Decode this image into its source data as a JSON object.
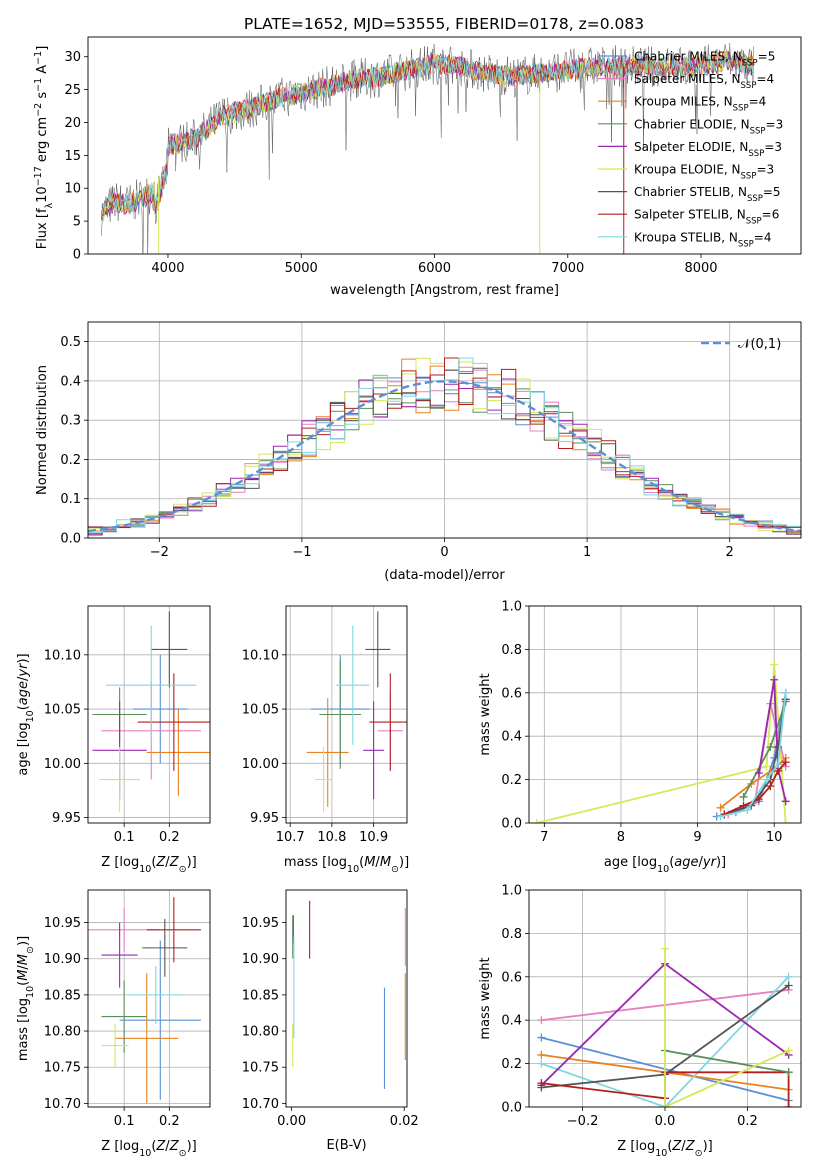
{
  "figure_title": "PLATE=1652, MJD=53555, FIBERID=0178, z=0.083",
  "colors": {
    "chabrier_miles": "#5b8fd6",
    "salpeter_miles": "#e87fc0",
    "kroupa_miles": "#e8821e",
    "chabrier_elodie": "#5a8f5a",
    "salpeter_elodie": "#9b27b0",
    "kroupa_elodie": "#d4e85a",
    "chabrier_stelib": "#555555",
    "salpeter_stelib": "#b41e1e",
    "kroupa_stelib": "#7fd8e0"
  },
  "chart_data": [
    {
      "id": "spectrum",
      "type": "line",
      "xlabel": "wavelength [Angstrom, rest frame]",
      "ylabel": "Flux [f_λ 10^-17 erg cm^-2 s^-1 A^-1]",
      "xlim": [
        3400,
        8750
      ],
      "ylim": [
        0,
        33
      ],
      "xticks": [
        4000,
        5000,
        6000,
        7000,
        8000
      ],
      "yticks": [
        0,
        5,
        10,
        15,
        20,
        25,
        30
      ],
      "grid": false,
      "legend_position": "right",
      "legend": [
        {
          "label": "Chabrier MILES, N",
          "sub": "SSP",
          "eq": "=5",
          "color": "#5b8fd6"
        },
        {
          "label": "Salpeter MILES, N",
          "sub": "SSP",
          "eq": "=4",
          "color": "#e87fc0"
        },
        {
          "label": "Kroupa MILES, N",
          "sub": "SSP",
          "eq": "=4",
          "color": "#e8821e"
        },
        {
          "label": "Chabrier ELODIE, N",
          "sub": "SSP",
          "eq": "=3",
          "color": "#5a8f5a"
        },
        {
          "label": "Salpeter ELODIE, N",
          "sub": "SSP",
          "eq": "=3",
          "color": "#9b27b0"
        },
        {
          "label": "Kroupa ELODIE, N",
          "sub": "SSP",
          "eq": "=3",
          "color": "#d4e85a"
        },
        {
          "label": "Chabrier STELIB, N",
          "sub": "SSP",
          "eq": "=5",
          "color": "#555555"
        },
        {
          "label": "Salpeter STELIB, N",
          "sub": "SSP",
          "eq": "=6",
          "color": "#b41e1e"
        },
        {
          "label": "Kroupa STELIB, N",
          "sub": "SSP",
          "eq": "=4",
          "color": "#7fd8e0"
        }
      ],
      "envelope": {
        "x": [
          3500,
          3600,
          3700,
          3800,
          3900,
          4000,
          4100,
          4200,
          4300,
          4400,
          4500,
          4600,
          4800,
          5000,
          5200,
          5400,
          5600,
          5800,
          5900,
          6000,
          6200,
          6400,
          6600,
          6800,
          7000,
          7200,
          7400,
          7600,
          7800,
          8000,
          8200,
          8400
        ],
        "y": [
          6,
          8,
          7.5,
          8.5,
          9.5,
          16.5,
          17,
          17.5,
          19,
          21,
          21.5,
          22,
          23.5,
          24.5,
          25.5,
          26.5,
          27,
          28,
          28.5,
          29,
          28.5,
          27.5,
          27,
          27.5,
          28,
          28.5,
          28.5,
          28.5,
          28.5,
          28.5,
          29.5,
          28.5
        ]
      },
      "spikes": [
        {
          "x": 6790,
          "color": "#d4e85a"
        },
        {
          "x": 7420,
          "color": "#b41e1e"
        },
        {
          "x": 3930,
          "color": "#d4e85a"
        }
      ]
    },
    {
      "id": "residuals",
      "type": "step",
      "xlabel": "(data-model)/error",
      "ylabel": "Normed distribution",
      "xlim": [
        -2.5,
        2.5
      ],
      "ylim": [
        0,
        0.55
      ],
      "xticks": [
        -2,
        -1,
        0,
        1,
        2
      ],
      "yticks": [
        0.0,
        0.1,
        0.2,
        0.3,
        0.4,
        0.5
      ],
      "grid": true,
      "legend_position": "top-right",
      "legend_label": "𝒩(0,1)",
      "reference_color": "#5b8fd6"
    },
    {
      "id": "age_vs_Z",
      "type": "errorbar",
      "xlabel": "Z [log10(Z/Z⊙)]",
      "ylabel": "age  [log10(age/yr)]",
      "xlim": [
        0.02,
        0.29
      ],
      "ylim": [
        9.945,
        10.145
      ],
      "xticks": [
        0.1,
        0.2
      ],
      "yticks": [
        9.95,
        10.0,
        10.05,
        10.1
      ],
      "grid": true,
      "points": [
        {
          "x": 0.18,
          "y": 10.05,
          "xerr": 0.06,
          "yerr": 0.05,
          "color": "#5b8fd6"
        },
        {
          "x": 0.16,
          "y": 10.03,
          "xerr": 0.11,
          "yerr": 0.045,
          "color": "#e87fc0"
        },
        {
          "x": 0.22,
          "y": 10.01,
          "xerr": 0.07,
          "yerr": 0.04,
          "color": "#e8821e"
        },
        {
          "x": 0.09,
          "y": 10.045,
          "xerr": 0.06,
          "yerr": 0.025,
          "color": "#5a8f5a"
        },
        {
          "x": 0.09,
          "y": 10.012,
          "xerr": 0.06,
          "yerr": 0.045,
          "color": "#9b27b0"
        },
        {
          "x": 0.09,
          "y": 9.985,
          "xerr": 0.045,
          "yerr": 0.03,
          "color": "#d4e85a"
        },
        {
          "x": 0.2,
          "y": 10.105,
          "xerr": 0.04,
          "yerr": 0.035,
          "color": "#555555"
        },
        {
          "x": 0.21,
          "y": 10.038,
          "xerr": 0.08,
          "yerr": 0.045,
          "color": "#b41e1e"
        },
        {
          "x": 0.16,
          "y": 10.072,
          "xerr": 0.1,
          "yerr": 0.055,
          "color": "#7fd8e0"
        }
      ]
    },
    {
      "id": "age_vs_mass",
      "type": "errorbar",
      "xlabel": "mass [log10(M/M⊙)]",
      "ylabel": "",
      "xlim": [
        10.69,
        10.98
      ],
      "ylim": [
        9.945,
        10.145
      ],
      "xticks": [
        10.7,
        10.8,
        10.9
      ],
      "yticks": [
        9.95,
        10.0,
        10.05,
        10.1
      ],
      "grid": true,
      "points": [
        {
          "x": 10.82,
          "y": 10.05,
          "xerr": 0.07,
          "yerr": 0.05,
          "color": "#5b8fd6"
        },
        {
          "x": 10.94,
          "y": 10.03,
          "xerr": 0.03,
          "yerr": 0.035,
          "color": "#e87fc0"
        },
        {
          "x": 10.79,
          "y": 10.01,
          "xerr": 0.05,
          "yerr": 0.05,
          "color": "#e8821e"
        },
        {
          "x": 10.82,
          "y": 10.045,
          "xerr": 0.05,
          "yerr": 0.05,
          "color": "#5a8f5a"
        },
        {
          "x": 10.9,
          "y": 10.012,
          "xerr": 0.025,
          "yerr": 0.045,
          "color": "#9b27b0"
        },
        {
          "x": 10.78,
          "y": 9.985,
          "xerr": 0.02,
          "yerr": 0.03,
          "color": "#d4e85a"
        },
        {
          "x": 10.91,
          "y": 10.105,
          "xerr": 0.03,
          "yerr": 0.035,
          "color": "#555555"
        },
        {
          "x": 10.94,
          "y": 10.038,
          "xerr": 0.05,
          "yerr": 0.045,
          "color": "#b41e1e"
        },
        {
          "x": 10.85,
          "y": 10.072,
          "xerr": 0.04,
          "yerr": 0.055,
          "color": "#7fd8e0"
        }
      ]
    },
    {
      "id": "weight_vs_age",
      "type": "line",
      "xlabel": "age  [log10(age/yr)]",
      "ylabel": "mass weight",
      "xlim": [
        6.8,
        10.35
      ],
      "ylim": [
        0,
        1.0
      ],
      "xticks": [
        7,
        8,
        9,
        10
      ],
      "yticks": [
        0.0,
        0.2,
        0.4,
        0.6,
        0.8,
        1.0
      ],
      "grid": true,
      "series": [
        {
          "color": "#d4e85a",
          "x": [
            6.9,
            9.9,
            10.0,
            10.15
          ],
          "y": [
            0.0,
            0.26,
            0.73,
            0.0
          ]
        },
        {
          "color": "#5b8fd6",
          "x": [
            9.25,
            9.5,
            9.8,
            10.0,
            10.15
          ],
          "y": [
            0.03,
            0.05,
            0.1,
            0.3,
            0.6
          ]
        },
        {
          "color": "#e87fc0",
          "x": [
            9.4,
            9.75,
            9.95,
            10.05,
            10.15
          ],
          "y": [
            0.04,
            0.1,
            0.55,
            0.4,
            0.26
          ]
        },
        {
          "color": "#e8821e",
          "x": [
            9.3,
            9.7,
            10.0,
            10.15
          ],
          "y": [
            0.07,
            0.18,
            0.25,
            0.3
          ]
        },
        {
          "color": "#5a8f5a",
          "x": [
            9.6,
            9.95,
            10.15
          ],
          "y": [
            0.12,
            0.35,
            0.56
          ]
        },
        {
          "color": "#9b27b0",
          "x": [
            9.8,
            10.0,
            10.05,
            10.15
          ],
          "y": [
            0.23,
            0.66,
            0.25,
            0.1
          ]
        },
        {
          "color": "#555555",
          "x": [
            9.35,
            9.7,
            9.95,
            10.05,
            10.15
          ],
          "y": [
            0.04,
            0.08,
            0.2,
            0.35,
            0.57
          ]
        },
        {
          "color": "#b41e1e",
          "x": [
            9.35,
            9.6,
            9.8,
            9.95,
            10.05,
            10.15
          ],
          "y": [
            0.04,
            0.08,
            0.11,
            0.17,
            0.24,
            0.28
          ]
        },
        {
          "color": "#7fd8e0",
          "x": [
            9.3,
            9.65,
            9.9,
            10.05,
            10.15
          ],
          "y": [
            0.03,
            0.06,
            0.2,
            0.27,
            0.6
          ]
        }
      ]
    },
    {
      "id": "mass_vs_Z",
      "type": "errorbar",
      "xlabel": "Z [log10(Z/Z⊙)]",
      "ylabel": "mass [log10(M/M⊙)]",
      "xlim": [
        0.02,
        0.29
      ],
      "ylim": [
        10.695,
        10.995
      ],
      "xticks": [
        0.1,
        0.2
      ],
      "yticks": [
        10.7,
        10.75,
        10.8,
        10.85,
        10.9,
        10.95
      ],
      "grid": true,
      "points": [
        {
          "x": 0.18,
          "y": 10.815,
          "xerr": 0.09,
          "yerr": 0.11,
          "color": "#5b8fd6"
        },
        {
          "x": 0.1,
          "y": 10.94,
          "xerr": 0.08,
          "yerr": 0.03,
          "color": "#e87fc0"
        },
        {
          "x": 0.15,
          "y": 10.79,
          "xerr": 0.07,
          "yerr": 0.09,
          "color": "#e8821e"
        },
        {
          "x": 0.1,
          "y": 10.82,
          "xerr": 0.05,
          "yerr": 0.05,
          "color": "#5a8f5a"
        },
        {
          "x": 0.09,
          "y": 10.905,
          "xerr": 0.04,
          "yerr": 0.045,
          "color": "#9b27b0"
        },
        {
          "x": 0.08,
          "y": 10.78,
          "xerr": 0.03,
          "yerr": 0.03,
          "color": "#d4e85a"
        },
        {
          "x": 0.19,
          "y": 10.915,
          "xerr": 0.05,
          "yerr": 0.04,
          "color": "#555555"
        },
        {
          "x": 0.21,
          "y": 10.94,
          "xerr": 0.06,
          "yerr": 0.045,
          "color": "#b41e1e"
        },
        {
          "x": 0.17,
          "y": 10.85,
          "xerr": 0.06,
          "yerr": 0.04,
          "color": "#7fd8e0"
        }
      ]
    },
    {
      "id": "mass_vs_ebv",
      "type": "errorbar",
      "xlabel": "E(B-V)",
      "ylabel": "",
      "xlim": [
        -0.001,
        0.0205
      ],
      "ylim": [
        10.695,
        10.995
      ],
      "xticks": [
        0.0,
        0.02
      ],
      "yticks": [
        10.7,
        10.75,
        10.8,
        10.85,
        10.9,
        10.95
      ],
      "grid": false,
      "points": [
        {
          "x": 0.0165,
          "y": 10.79,
          "xerr": 0,
          "yerr": 0.07,
          "color": "#5b8fd6"
        },
        {
          "x": 0.0202,
          "y": 10.93,
          "xerr": 0,
          "yerr": 0.04,
          "color": "#e87fc0"
        },
        {
          "x": 0.0202,
          "y": 10.82,
          "xerr": 0,
          "yerr": 0.06,
          "color": "#e8821e"
        },
        {
          "x": 0.0002,
          "y": 10.93,
          "xerr": 0,
          "yerr": 0.03,
          "color": "#5a8f5a"
        },
        {
          "x": 0.0002,
          "y": 10.78,
          "xerr": 0,
          "yerr": 0.03,
          "color": "#d4e85a"
        },
        {
          "x": 0.0003,
          "y": 10.94,
          "xerr": 0,
          "yerr": 0.02,
          "color": "#555555"
        },
        {
          "x": 0.0032,
          "y": 10.94,
          "xerr": 0,
          "yerr": 0.04,
          "color": "#b41e1e"
        },
        {
          "x": 0.0004,
          "y": 10.86,
          "xerr": 0,
          "yerr": 0.07,
          "color": "#7fd8e0"
        }
      ]
    },
    {
      "id": "weight_vs_Z",
      "type": "line",
      "xlabel": "Z [log10(Z/Z⊙)]",
      "ylabel": "mass weight",
      "xlim": [
        -0.33,
        0.33
      ],
      "ylim": [
        0,
        1.0
      ],
      "xticks": [
        -0.2,
        0.0,
        0.2
      ],
      "yticks": [
        0.0,
        0.2,
        0.4,
        0.6,
        0.8,
        1.0
      ],
      "grid": true,
      "series": [
        {
          "color": "#e87fc0",
          "x": [
            -0.3,
            0.3
          ],
          "y": [
            0.4,
            0.54
          ]
        },
        {
          "color": "#5b8fd6",
          "x": [
            -0.3,
            0.3
          ],
          "y": [
            0.32,
            0.03
          ]
        },
        {
          "color": "#e8821e",
          "x": [
            -0.3,
            0.3
          ],
          "y": [
            0.24,
            0.08
          ]
        },
        {
          "color": "#7fd8e0",
          "x": [
            -0.3,
            0.0,
            0.3
          ],
          "y": [
            0.2,
            0.0,
            0.6
          ]
        },
        {
          "color": "#9b27b0",
          "x": [
            -0.3,
            0.0,
            0.3
          ],
          "y": [
            0.1,
            0.66,
            0.24
          ]
        },
        {
          "color": "#555555",
          "x": [
            -0.3,
            0.0,
            0.3
          ],
          "y": [
            0.09,
            0.15,
            0.56
          ]
        },
        {
          "color": "#b41e1e",
          "x": [
            -0.3,
            0.0,
            0.0,
            0.3,
            0.3
          ],
          "y": [
            0.11,
            0.04,
            0.16,
            0.16,
            0.0
          ]
        },
        {
          "color": "#5a8f5a",
          "x": [
            0.0,
            0.3
          ],
          "y": [
            0.26,
            0.16
          ]
        },
        {
          "color": "#d4e85a",
          "x": [
            0.0,
            0.0,
            0.3
          ],
          "y": [
            0.73,
            0.0,
            0.26
          ]
        }
      ]
    }
  ]
}
